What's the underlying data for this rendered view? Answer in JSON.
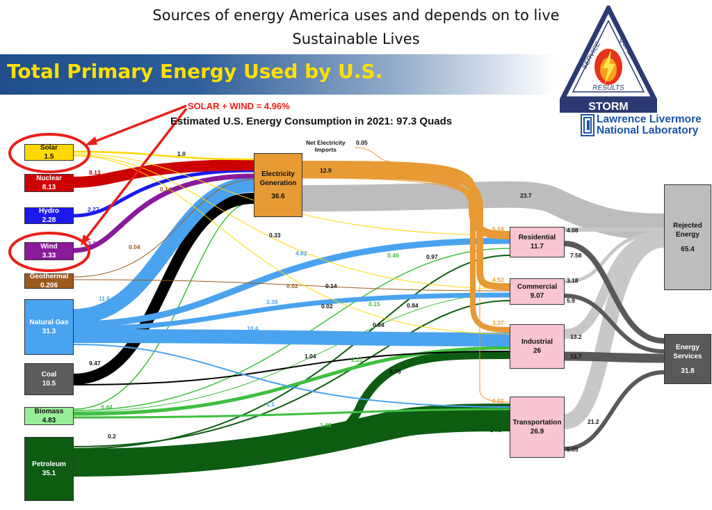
{
  "slide": {
    "title_line1": "Sources of energy America uses and depends on to live",
    "title_line2": "Sustainable Lives",
    "banner": "Total Primary Energy Used by U.S."
  },
  "annotation": {
    "solar_wind": "SOLAR + WIND = 4.96%",
    "chart_title": "Estimated U.S. Energy Consumption in 2021: 97.3 Quads"
  },
  "storm_logo": {
    "service": "SERVICE",
    "quality": "QUALITY",
    "results": "RESULTS",
    "name": "STORM"
  },
  "llnl": {
    "line1": "Lawrence Livermore",
    "line2": "National Laboratory"
  },
  "net_imports": {
    "label_line1": "Net Electricity",
    "label_line2": "Imports",
    "value": "0.05"
  },
  "sources": {
    "solar": {
      "label": "Solar",
      "value": "1.5"
    },
    "nuclear": {
      "label": "Nuclear",
      "value": "8.13"
    },
    "hydro": {
      "label": "Hydro",
      "value": "2.28"
    },
    "wind": {
      "label": "Wind",
      "value": "3.33"
    },
    "geothermal": {
      "label": "Geothermal",
      "value": "0.206"
    },
    "natural_gas": {
      "label": "Natural Gas",
      "value": "31.3"
    },
    "coal": {
      "label": "Coal",
      "value": "10.5"
    },
    "biomass": {
      "label": "Biomass",
      "value": "4.83"
    },
    "petroleum": {
      "label": "Petroleum",
      "value": "35.1"
    }
  },
  "electricity": {
    "label_line1": "Electricity",
    "label_line2": "Generation",
    "value": "36.6"
  },
  "sectors": {
    "residential": {
      "label": "Residential",
      "value": "11.7"
    },
    "commercial": {
      "label": "Commercial",
      "value": "9.07"
    },
    "industrial": {
      "label": "Industrial",
      "value": "26"
    },
    "transportation": {
      "label": "Transportation",
      "value": "26.9"
    }
  },
  "sinks": {
    "rejected": {
      "label_line1": "Rejected",
      "label_line2": "Energy",
      "value": "65.4"
    },
    "services": {
      "label_line1": "Energy",
      "label_line2": "Services",
      "value": "31.8"
    }
  },
  "flow_labels": {
    "solar_elec": "1.0",
    "nuclear_elec": "8.13",
    "hydro_elec": "2.27",
    "wind_elec": "3.32",
    "geo_elec": "0.14",
    "geo_res": "0.04",
    "elec_imports_out": "12.9",
    "elec_rejected": "23.7",
    "solar_res": "0.33",
    "gas_res": "4.82",
    "geo_com": "0.02",
    "solar_com": "0.14",
    "gas_com": "3.38",
    "coal_com": "0.02",
    "solar_ind": "0.04",
    "gas_elec": "11.6",
    "gas_ind": "10.4",
    "bio_res": "0.46",
    "bio_com": "0.15",
    "pet_res": "0.97",
    "pet_com": "0.84",
    "coal_elec": "9.47",
    "coal_ind": "1.04",
    "bio_ind": "2.31",
    "pet_ind": "8.76",
    "gas_trans": "1.1",
    "bio_elec": "0.44",
    "bio_trans": "1.48",
    "pet_elec": "0.2",
    "elec_res": "5.04",
    "elec_com": "4.52",
    "elec_ind": "3.37",
    "elec_trans": "0.02",
    "pet_trans": "24.3",
    "res_rej": "4.08",
    "res_serv": "7.58",
    "com_rej": "3.18",
    "com_serv": "5.9",
    "ind_rej": "13.2",
    "ind_serv": "12.7",
    "trans_rej": "21.2",
    "trans_serv": "5.65"
  },
  "colors": {
    "solar": "#ffd800",
    "nuclear": "#cc0000",
    "hydro": "#1a1aee",
    "wind": "#8a1a9b",
    "geothermal": "#9c5a1e",
    "natural_gas": "#4aa3ef",
    "coal": "#000000",
    "biomass": "#3fbf3f",
    "petroleum": "#0d5c12",
    "electricity": "#e89a34",
    "rejected": "#bdbdbd",
    "services": "#595959",
    "annotation": "#e8201a"
  }
}
